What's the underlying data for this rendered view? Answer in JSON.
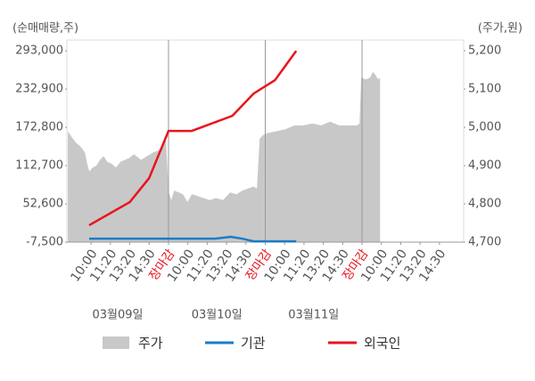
{
  "chart_data": {
    "type": "combo",
    "y_label": "(순매매량,주)",
    "y2_label": "(주가,원)",
    "xlim": [
      -1.25,
      19.25
    ],
    "xticks": [
      {
        "value": 0,
        "label": "10:00"
      },
      {
        "value": 1,
        "label": "11:20"
      },
      {
        "value": 2,
        "label": "13:20"
      },
      {
        "value": 3,
        "label": "14:30"
      },
      {
        "value": 4,
        "label": "장마감"
      },
      {
        "value": 5,
        "label": "10:00"
      },
      {
        "value": 6,
        "label": "11:20"
      },
      {
        "value": 7,
        "label": "13:20"
      },
      {
        "value": 8,
        "label": "14:30"
      },
      {
        "value": 9,
        "label": "장마감"
      },
      {
        "value": 10,
        "label": "10:00"
      },
      {
        "value": 11,
        "label": "11:20"
      },
      {
        "value": 12,
        "label": "13:20"
      },
      {
        "value": 13,
        "label": "14:30"
      },
      {
        "value": 14,
        "label": "장마감"
      },
      {
        "value": 15,
        "label": "10:00"
      },
      {
        "value": 16,
        "label": "11:20"
      },
      {
        "value": 17,
        "label": "13:20"
      },
      {
        "value": 18,
        "label": "14:30"
      }
    ],
    "xlines": [
      4,
      9,
      14
    ],
    "dates": [
      "03월09일",
      "03월10일",
      "03월11일"
    ],
    "ylim": [
      -7500,
      310000
    ],
    "yticks": [
      {
        "value": -7500,
        "label": "-7,500"
      },
      {
        "value": 52600,
        "label": "52,600"
      },
      {
        "value": 112700,
        "label": "112,700"
      },
      {
        "value": 172800,
        "label": "172,800"
      },
      {
        "value": 232900,
        "label": "232,900"
      },
      {
        "value": 293000,
        "label": "293,000"
      }
    ],
    "y2lim": [
      4700,
      5228
    ],
    "y2ticks": [
      {
        "value": 4700,
        "label": "4,700"
      },
      {
        "value": 4800,
        "label": "4,800"
      },
      {
        "value": 4900,
        "label": "4,900"
      },
      {
        "value": 5000,
        "label": "5,000"
      },
      {
        "value": 5100,
        "label": "5,100"
      },
      {
        "value": 5200,
        "label": "5,200"
      }
    ],
    "highlight_color": "#e8141e",
    "series": [
      {
        "name": "주가",
        "type": "area",
        "axis": "y2",
        "color": "#c8c8c8",
        "x": [
          -1.2,
          -1.01,
          -0.78,
          -0.55,
          -0.32,
          -0.18,
          -0.09,
          0.09,
          0.28,
          0.46,
          0.65,
          0.83,
          1.06,
          1.29,
          1.52,
          1.75,
          1.98,
          2.21,
          2.58,
          2.9,
          3.23,
          3.5,
          3.69,
          3.87,
          4.01,
          4.15,
          4.29,
          4.52,
          4.75,
          4.98,
          5.21,
          5.53,
          5.81,
          6.13,
          6.45,
          6.82,
          7.19,
          7.51,
          7.83,
          8.11,
          8.39,
          8.57,
          8.71,
          8.89,
          9.12,
          9.59,
          10.05,
          10.51,
          10.97,
          11.43,
          11.89,
          12.35,
          12.81,
          13.27,
          13.73,
          13.87,
          13.96,
          14.19,
          14.42,
          14.56,
          14.65,
          14.84,
          14.93
        ],
        "values": [
          4990,
          4975,
          4960,
          4950,
          4935,
          4900,
          4885,
          4895,
          4900,
          4915,
          4925,
          4910,
          4905,
          4895,
          4910,
          4915,
          4920,
          4930,
          4915,
          4925,
          4935,
          4940,
          4955,
          4965,
          4830,
          4810,
          4835,
          4830,
          4825,
          4805,
          4825,
          4820,
          4815,
          4810,
          4815,
          4810,
          4830,
          4825,
          4835,
          4840,
          4845,
          4840,
          4970,
          4980,
          4985,
          4990,
          4995,
          5005,
          5005,
          5010,
          5005,
          5015,
          5005,
          5005,
          5005,
          5010,
          5130,
          5125,
          5130,
          5145,
          5140,
          5125,
          5130
        ]
      },
      {
        "name": "기관",
        "type": "line",
        "color": "#1a7cc9",
        "x": [
          -0.1,
          6.4,
          7.2,
          7.8,
          8.4,
          10.6
        ],
        "values": [
          -2000,
          -2000,
          800,
          -2000,
          -6200,
          -6200
        ]
      },
      {
        "name": "외국인",
        "type": "line",
        "color": "#e8141e",
        "x": [
          -0.1,
          2,
          3,
          4,
          5.2,
          7.3,
          8.4,
          9.5,
          10.6
        ],
        "values": [
          19000,
          55400,
          93100,
          167200,
          167200,
          191000,
          225900,
          246900,
          293000
        ]
      }
    ]
  }
}
